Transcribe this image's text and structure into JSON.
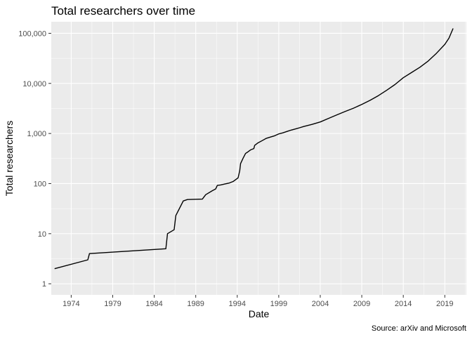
{
  "chart_data": {
    "type": "line",
    "title": "Total researchers over time",
    "xlabel": "Date",
    "ylabel": "Total researchers",
    "caption": "Source: arXiv and Microsoft",
    "y_scale": "log10",
    "grid": true,
    "legend": "none",
    "xlim": [
      1971.6,
      2021.6
    ],
    "ylim": [
      0.6,
      170000
    ],
    "x_ticks": [
      {
        "value": 1974,
        "label": "1974"
      },
      {
        "value": 1979,
        "label": "1979"
      },
      {
        "value": 1984,
        "label": "1984"
      },
      {
        "value": 1989,
        "label": "1989"
      },
      {
        "value": 1994,
        "label": "1994"
      },
      {
        "value": 1999,
        "label": "1999"
      },
      {
        "value": 2004,
        "label": "2004"
      },
      {
        "value": 2009,
        "label": "2009"
      },
      {
        "value": 2014,
        "label": "2014"
      },
      {
        "value": 2019,
        "label": "2019"
      }
    ],
    "y_ticks": [
      {
        "value": 1,
        "label": "1"
      },
      {
        "value": 10,
        "label": "10"
      },
      {
        "value": 100,
        "label": "100"
      },
      {
        "value": 1000,
        "label": "1,000"
      },
      {
        "value": 10000,
        "label": "10,000"
      },
      {
        "value": 100000,
        "label": "100,000"
      }
    ],
    "colors": {
      "panel": "#ebebeb",
      "grid_major": "#ffffff",
      "line": "#000000"
    },
    "series": [
      {
        "x": [
          1972.0,
          1976.0,
          1976.2,
          1985.4,
          1985.6,
          1986.4,
          1986.6,
          1987.5,
          1988.0,
          1989.8,
          1990.2,
          1991.0,
          1991.4,
          1991.6,
          1992.0,
          1992.5,
          1993.0,
          1993.5,
          1994.1,
          1994.3,
          1994.4,
          1994.7,
          1995.0,
          1995.2,
          1995.6,
          1996.0,
          1996.1,
          1996.5,
          1997.0,
          1997.5,
          1998.0,
          1998.5,
          1999.0,
          1999.5,
          2000.0,
          2000.5,
          2001.0,
          2001.5,
          2002.0,
          2003.0,
          2004.0,
          2005.0,
          2006.0,
          2007.0,
          2008.0,
          2009.0,
          2010.0,
          2011.0,
          2012.0,
          2013.0,
          2014.0,
          2015.0,
          2016.0,
          2017.0,
          2018.0,
          2019.0,
          2019.5,
          2020.0
        ],
        "y": [
          2,
          3,
          4,
          5,
          10,
          12,
          23,
          45,
          48,
          49,
          60,
          72,
          78,
          92,
          94,
          98,
          102,
          110,
          130,
          180,
          250,
          320,
          400,
          420,
          470,
          500,
          580,
          650,
          720,
          800,
          850,
          900,
          980,
          1030,
          1100,
          1170,
          1230,
          1300,
          1380,
          1520,
          1700,
          2000,
          2350,
          2750,
          3200,
          3800,
          4600,
          5700,
          7300,
          9500,
          13000,
          16500,
          21000,
          28000,
          40000,
          60000,
          80000,
          125000
        ]
      }
    ]
  }
}
